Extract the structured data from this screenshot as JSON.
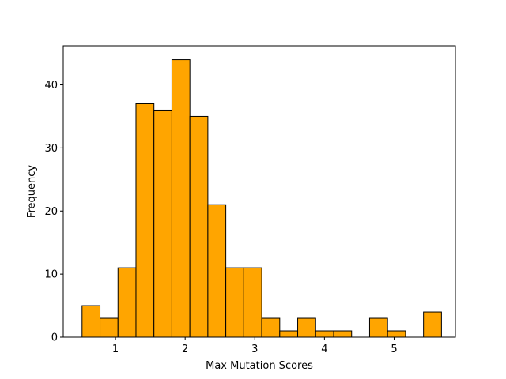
{
  "chart_data": {
    "type": "bar",
    "title": "",
    "xlabel": "Max Mutation Scores",
    "ylabel": "Frequency",
    "xlim": [
      0.25,
      5.88
    ],
    "ylim": [
      0,
      46.2
    ],
    "xticks": [
      1,
      2,
      3,
      4,
      5
    ],
    "yticks": [
      0,
      10,
      20,
      30,
      40
    ],
    "bin_edges": [
      0.52,
      0.778,
      1.036,
      1.294,
      1.552,
      1.81,
      2.068,
      2.326,
      2.584,
      2.842,
      3.1,
      3.358,
      3.616,
      3.874,
      4.132,
      4.39,
      4.648,
      4.906,
      5.164,
      5.422,
      5.68
    ],
    "counts": [
      5,
      3,
      11,
      37,
      36,
      44,
      35,
      21,
      11,
      11,
      3,
      1,
      3,
      1,
      1,
      0,
      3,
      1,
      0,
      4
    ],
    "bar_color": "#FFA500",
    "edge_color": "#000000",
    "grid": false
  }
}
